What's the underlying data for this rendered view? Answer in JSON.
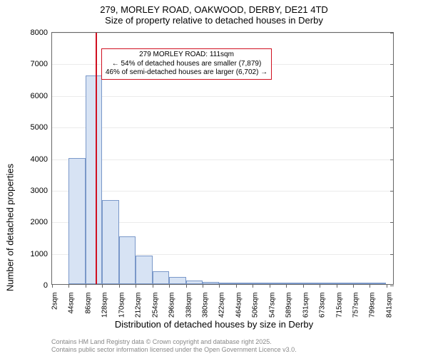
{
  "title": {
    "line1": "279, MORLEY ROAD, OAKWOOD, DERBY, DE21 4TD",
    "line2": "Size of property relative to detached houses in Derby"
  },
  "chart": {
    "type": "histogram",
    "background_color": "#ffffff",
    "grid_color": "#cccccc",
    "border_color": "#666666",
    "bar_fill": "#d7e3f4",
    "bar_stroke": "#7a98c9",
    "ylabel": "Number of detached properties",
    "xlabel": "Distribution of detached houses by size in Derby",
    "ylim": [
      0,
      8000
    ],
    "yticks": [
      0,
      1000,
      2000,
      3000,
      4000,
      5000,
      6000,
      7000,
      8000
    ],
    "xticks": [
      "2sqm",
      "44sqm",
      "86sqm",
      "128sqm",
      "170sqm",
      "212sqm",
      "254sqm",
      "296sqm",
      "338sqm",
      "380sqm",
      "422sqm",
      "464sqm",
      "506sqm",
      "547sqm",
      "589sqm",
      "631sqm",
      "673sqm",
      "715sqm",
      "757sqm",
      "799sqm",
      "841sqm"
    ],
    "xtick_interval": 42,
    "xmin": 2,
    "xmax": 862,
    "bins": [
      {
        "start": 44,
        "end": 86,
        "count": 4000
      },
      {
        "start": 86,
        "end": 128,
        "count": 6600
      },
      {
        "start": 128,
        "end": 170,
        "count": 2650
      },
      {
        "start": 170,
        "end": 212,
        "count": 1500
      },
      {
        "start": 212,
        "end": 254,
        "count": 900
      },
      {
        "start": 254,
        "end": 296,
        "count": 400
      },
      {
        "start": 296,
        "end": 338,
        "count": 230
      },
      {
        "start": 338,
        "end": 380,
        "count": 110
      },
      {
        "start": 380,
        "end": 422,
        "count": 70
      },
      {
        "start": 422,
        "end": 464,
        "count": 30
      },
      {
        "start": 464,
        "end": 506,
        "count": 20
      },
      {
        "start": 506,
        "end": 547,
        "count": 10
      },
      {
        "start": 547,
        "end": 589,
        "count": 8
      },
      {
        "start": 589,
        "end": 631,
        "count": 5
      },
      {
        "start": 631,
        "end": 673,
        "count": 5
      },
      {
        "start": 673,
        "end": 715,
        "count": 3
      },
      {
        "start": 715,
        "end": 757,
        "count": 3
      },
      {
        "start": 757,
        "end": 799,
        "count": 2
      },
      {
        "start": 799,
        "end": 841,
        "count": 2
      }
    ],
    "marker": {
      "x_value": 111,
      "color": "#d01020"
    },
    "annotation": {
      "line1": "279 MORLEY ROAD: 111sqm",
      "line2": "← 54% of detached houses are smaller (7,879)",
      "line3": "46% of semi-detached houses are larger (6,702) →",
      "border_color": "#d01020"
    }
  },
  "footer": {
    "line1": "Contains HM Land Registry data © Crown copyright and database right 2025.",
    "line2": "Contains public sector information licensed under the Open Government Licence v3.0."
  }
}
